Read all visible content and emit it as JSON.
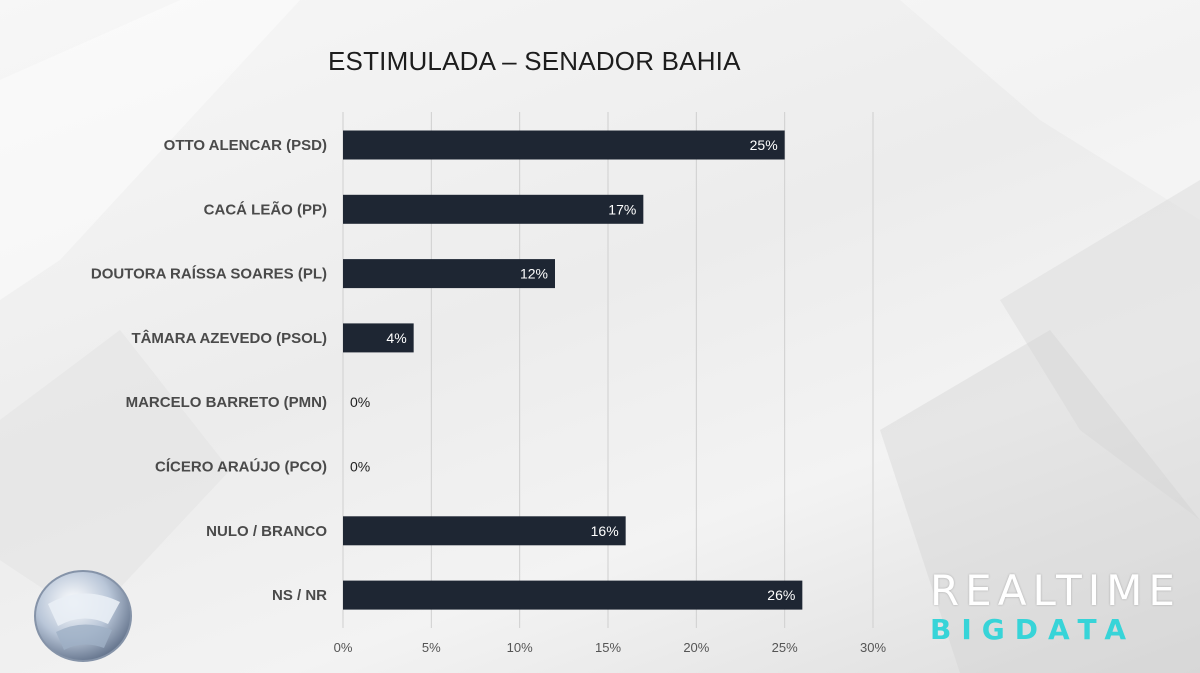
{
  "chart_data": {
    "type": "bar",
    "orientation": "horizontal",
    "title": "ESTIMULADA – SENADOR BAHIA",
    "categories": [
      "OTTO ALENCAR (PSD)",
      "CACÁ LEÃO (PP)",
      "DOUTORA RAÍSSA SOARES (PL)",
      "TÂMARA AZEVEDO (PSOL)",
      "MARCELO BARRETO (PMN)",
      "CÍCERO ARAÚJO (PCO)",
      "NULO / BRANCO",
      "NS / NR"
    ],
    "values": [
      25,
      17,
      12,
      4,
      0,
      0,
      16,
      26
    ],
    "value_labels": [
      "25%",
      "17%",
      "12%",
      "4%",
      "0%",
      "0%",
      "16%",
      "26%"
    ],
    "xlim": [
      0,
      30
    ],
    "x_ticks": [
      0,
      5,
      10,
      15,
      20,
      25,
      30
    ],
    "x_tick_labels": [
      "0%",
      "5%",
      "10%",
      "15%",
      "20%",
      "25%",
      "30%"
    ],
    "grid": "vertical",
    "legend": "none",
    "bar_color": "#1e2633"
  },
  "brand": {
    "line1": "REALTIME",
    "line2": "BIGDATA",
    "line2_color": "#37d4d8"
  },
  "logo": {
    "icon": "record-tv-logo-icon"
  }
}
